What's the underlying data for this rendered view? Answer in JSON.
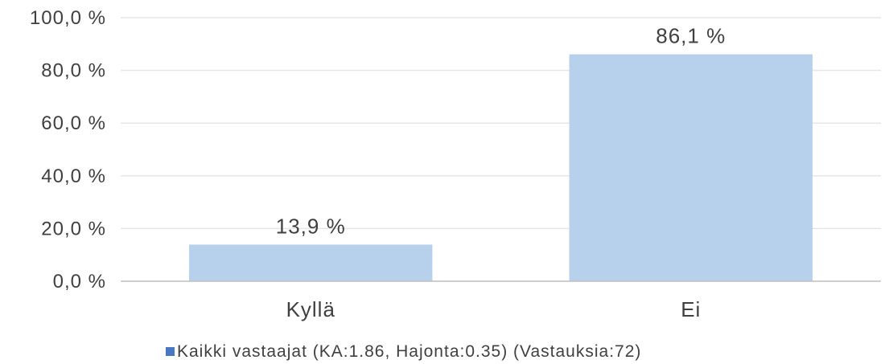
{
  "chart_data": {
    "type": "bar",
    "categories": [
      "Kyllä",
      "Ei"
    ],
    "series": [
      {
        "name": "Kaikki vastaajat (KA:1.86, Hajonta:0.35) (Vastauksia:72)",
        "values": [
          13.9,
          86.1
        ]
      }
    ],
    "data_labels": [
      "13,9 %",
      "86,1 %"
    ],
    "y_ticks": [
      0,
      20,
      40,
      60,
      80,
      100
    ],
    "y_tick_labels": [
      "0,0 %",
      "20,0 %",
      "40,0 %",
      "60,0 %",
      "80,0 %",
      "100,0 %"
    ],
    "ylim": [
      0,
      100
    ],
    "grid": true,
    "legend_position": "bottom",
    "colors": {
      "bar": "#b7d0ec",
      "legend_marker": "#4a77c4",
      "grid": "#e6e6e6",
      "axis": "#bfbfbf",
      "text": "#404040"
    }
  }
}
